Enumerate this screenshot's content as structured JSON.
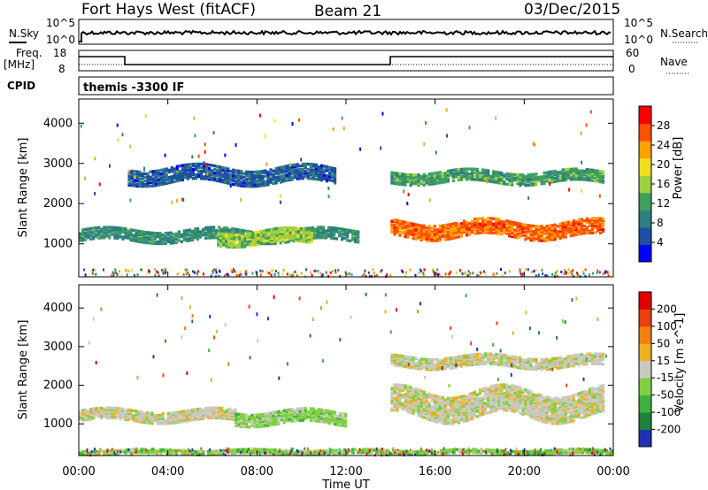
{
  "header": {
    "station": "Fort Hays West (fitACF)",
    "beam": "Beam 21",
    "date": "03/Dec/2015"
  },
  "top_strip": {
    "left_label": "N.Sky",
    "left_ticks": [
      "10^5",
      "10^0"
    ],
    "right_label": "N.Search",
    "right_ticks": [
      "10^5",
      "10^0"
    ]
  },
  "freq_strip": {
    "left_label_line1": "Freq.",
    "left_label_line2": "[MHz]",
    "left_ticks": [
      "18",
      "8"
    ],
    "right_label": "Nave",
    "right_ticks": [
      "60",
      "0"
    ],
    "cpid_label": "CPID",
    "cpid_text": "themis -3300 IF"
  },
  "panels": {
    "power": {
      "ylabel": "Slant Range [km]",
      "yticks": [
        "4000",
        "3000",
        "2000",
        "1000"
      ],
      "colorbar_label": "Power [dB]",
      "colorbar_ticks": [
        "28",
        "24",
        "20",
        "16",
        "12",
        "8",
        "4"
      ],
      "colors": [
        "#0000ff",
        "#1f4fa0",
        "#2f7f7f",
        "#3f9f5f",
        "#9fcf3f",
        "#efdf1f",
        "#ffa000",
        "#ff5000",
        "#ff0000"
      ]
    },
    "velocity": {
      "ylabel": "Slant Range [km]",
      "yticks": [
        "4000",
        "3000",
        "2000",
        "1000"
      ],
      "colorbar_label": "Velocity [m s^-1]",
      "colorbar_ticks": [
        "200",
        "100",
        "50",
        "15",
        "-15",
        "-50",
        "-100",
        "-200"
      ],
      "colors": [
        "#2030b0",
        "#208040",
        "#40b040",
        "#80d040",
        "#c8c8c0",
        "#f0b020",
        "#f08010",
        "#e84010",
        "#e00000"
      ]
    }
  },
  "xaxis": {
    "ticks": [
      "00:00",
      "04:00",
      "08:00",
      "12:00",
      "16:00",
      "20:00",
      "00:00"
    ],
    "label": "Time UT"
  },
  "chart_data": [
    {
      "type": "heatmap",
      "title": "Power [dB]",
      "xlabel": "Time UT",
      "ylabel": "Slant Range [km]",
      "xlim_hours": [
        0,
        24
      ],
      "ylim_km": [
        180,
        4600
      ],
      "color_range_db": [
        0,
        32
      ],
      "features": [
        {
          "t_start": 0.0,
          "t_end": 12.5,
          "range_center_km": 1200,
          "range_width_km": 300,
          "power_db": 10
        },
        {
          "t_start": 2.2,
          "t_end": 11.5,
          "range_center_km": 2700,
          "range_width_km": 400,
          "power_db": 6
        },
        {
          "t_start": 6.2,
          "t_end": 10.5,
          "range_center_km": 1150,
          "range_width_km": 350,
          "power_db": 16
        },
        {
          "t_start": 14.0,
          "t_end": 23.5,
          "range_center_km": 1350,
          "range_width_km": 400,
          "power_db": 26
        },
        {
          "t_start": 14.0,
          "t_end": 23.5,
          "range_center_km": 2650,
          "range_width_km": 300,
          "power_db": 12
        }
      ]
    },
    {
      "type": "heatmap",
      "title": "Velocity [m s^-1]",
      "xlabel": "Time UT",
      "ylabel": "Slant Range [km]",
      "xlim_hours": [
        0,
        24
      ],
      "ylim_km": [
        180,
        4600
      ],
      "color_range_ms": [
        -200,
        200
      ],
      "features": [
        {
          "t_start": 0.0,
          "t_end": 7.0,
          "range_center_km": 1200,
          "range_width_km": 300,
          "velocity_ms": 0
        },
        {
          "t_start": 7.0,
          "t_end": 12.0,
          "range_center_km": 1150,
          "range_width_km": 350,
          "velocity_ms": -40
        },
        {
          "t_start": 14.0,
          "t_end": 23.5,
          "range_center_km": 1500,
          "range_width_km": 700,
          "velocity_ms": 0
        },
        {
          "t_start": 14.0,
          "t_end": 23.5,
          "range_center_km": 2600,
          "range_width_km": 300,
          "velocity_ms": 0
        },
        {
          "t_start": 0.0,
          "t_end": 24.0,
          "range_center_km": 260,
          "range_width_km": 120,
          "velocity_ms": -50
        }
      ]
    }
  ]
}
